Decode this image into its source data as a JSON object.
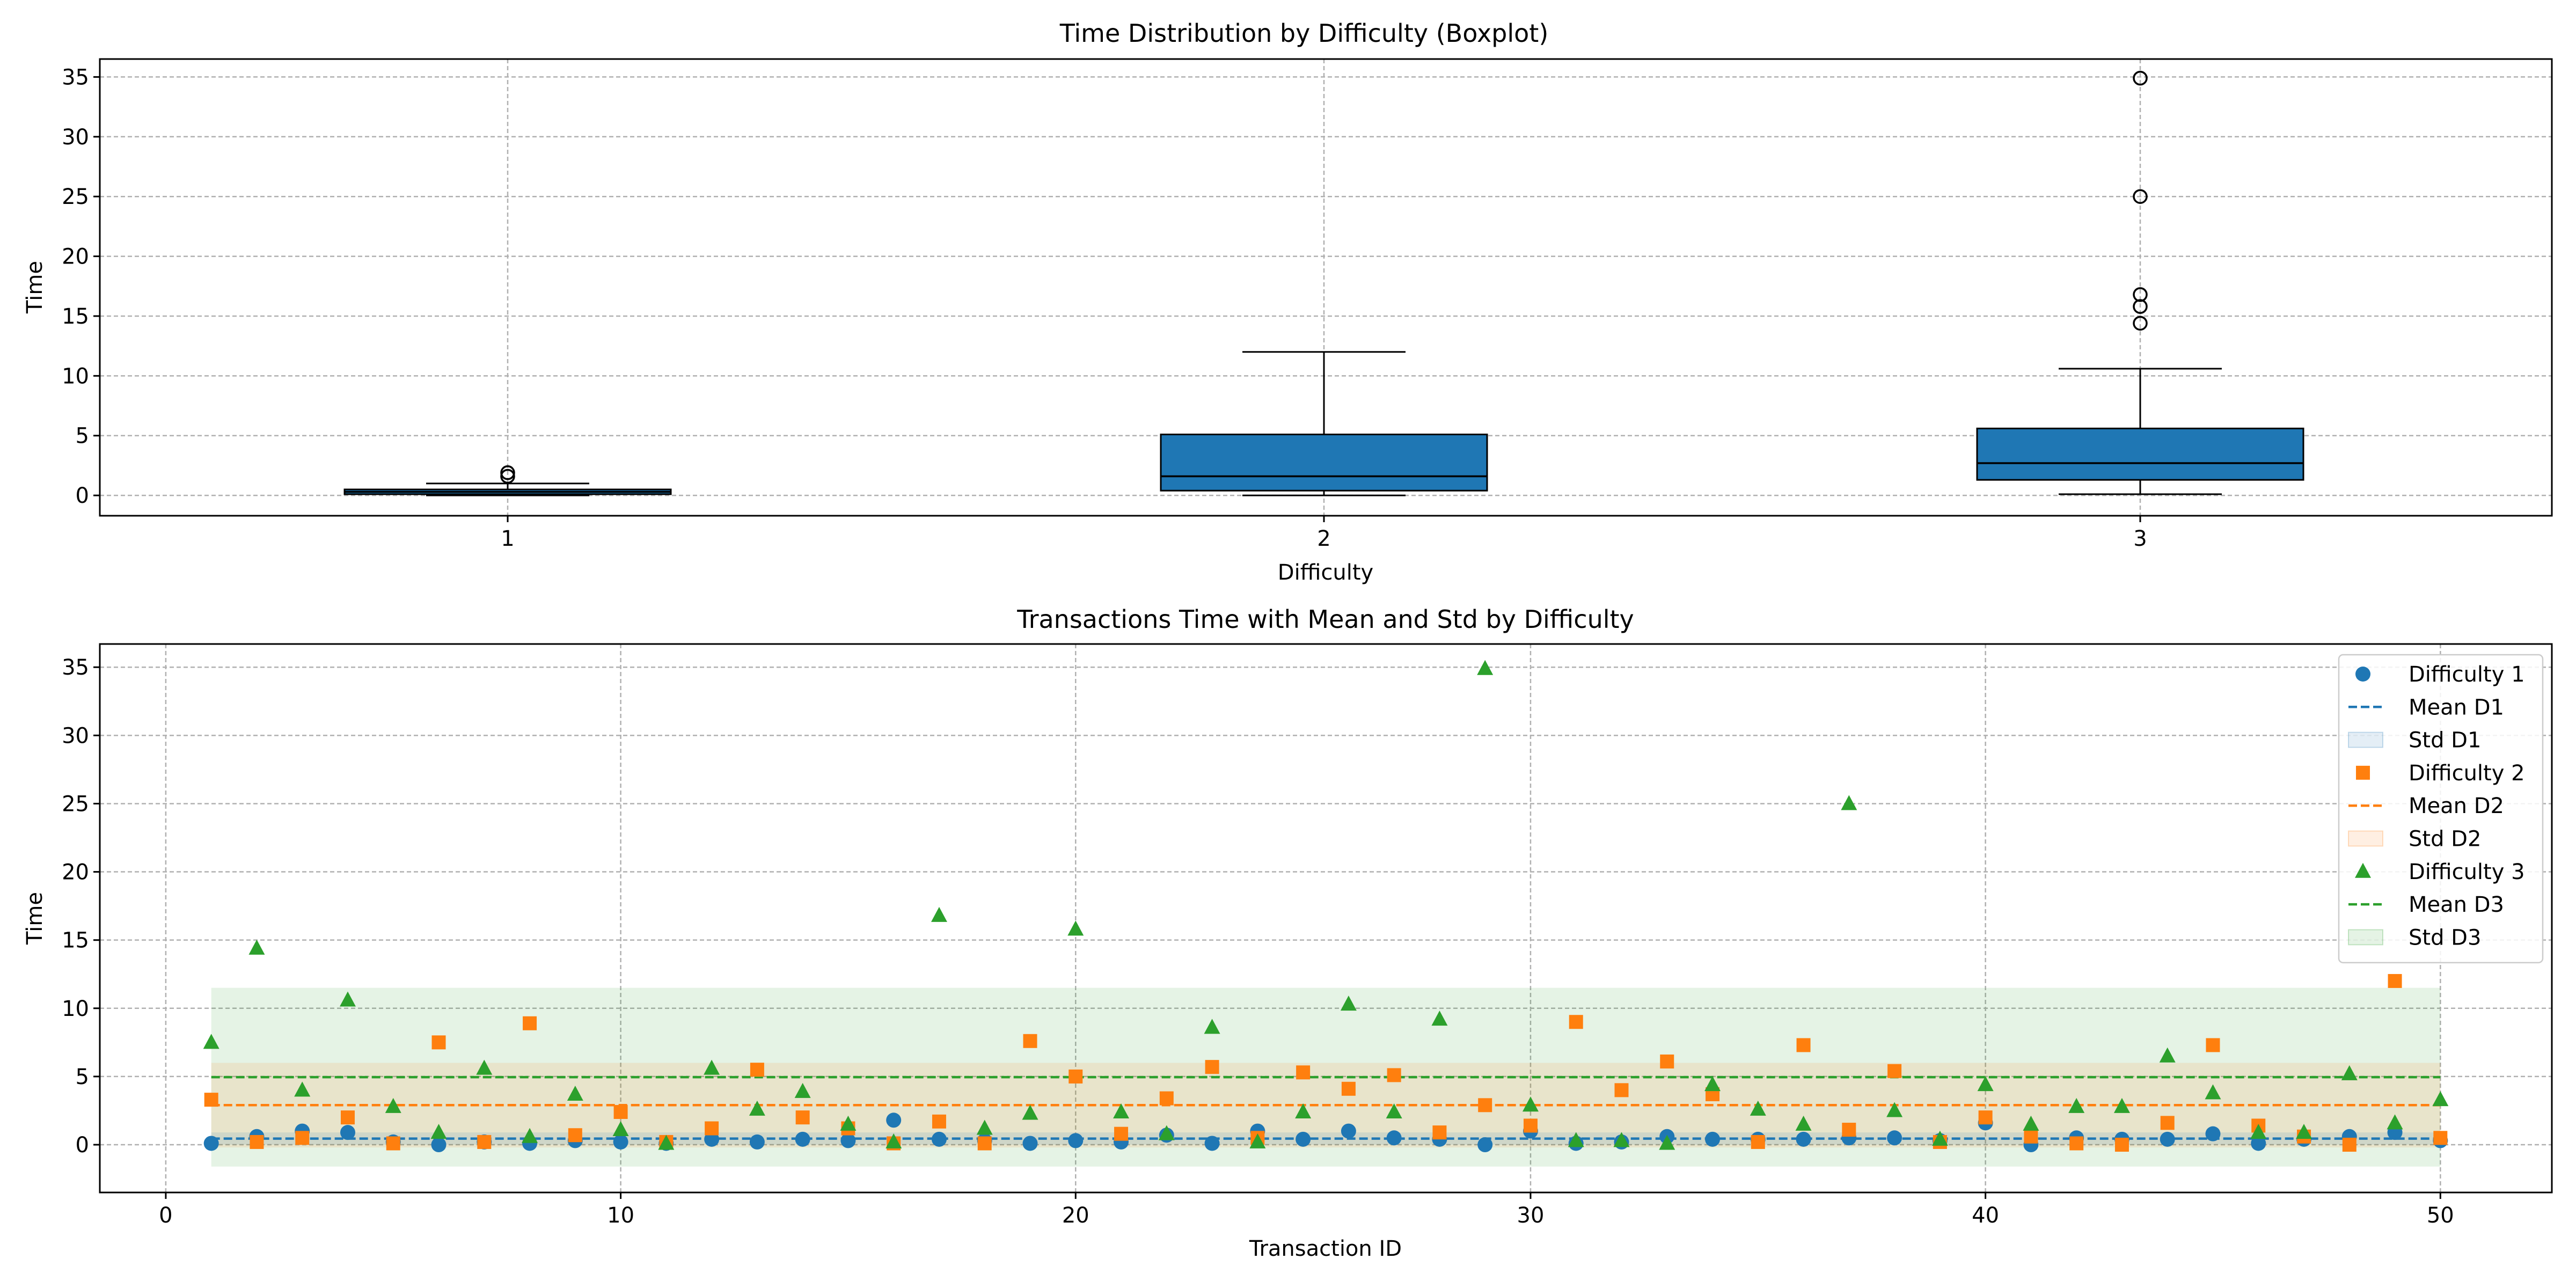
{
  "chart_data": [
    {
      "type": "boxplot",
      "title": "Time Distribution by Difficulty (Boxplot)",
      "xlabel": "Difficulty",
      "ylabel": "Time",
      "categories": [
        "1",
        "2",
        "3"
      ],
      "ylim": [
        -1.7,
        36.5
      ],
      "yticks": [
        0,
        5,
        10,
        15,
        20,
        25,
        30,
        35
      ],
      "grid": true,
      "box_color": "#1f77b4",
      "boxes": [
        {
          "category": "1",
          "whisker_low": 0.0,
          "q1": 0.1,
          "median": 0.3,
          "q3": 0.5,
          "whisker_high": 1.0,
          "outliers": [
            1.6,
            1.9
          ]
        },
        {
          "category": "2",
          "whisker_low": 0.0,
          "q1": 0.4,
          "median": 1.6,
          "q3": 5.1,
          "whisker_high": 12.0,
          "outliers": []
        },
        {
          "category": "3",
          "whisker_low": 0.1,
          "q1": 1.3,
          "median": 2.7,
          "q3": 5.6,
          "whisker_high": 10.6,
          "outliers": [
            14.4,
            15.8,
            16.8,
            25.0,
            34.9
          ]
        }
      ]
    },
    {
      "type": "scatter",
      "title": "Transactions Time with Mean and Std by Difficulty",
      "xlabel": "Transaction ID",
      "ylabel": "Time",
      "xlim": [
        -1.45,
        52.45
      ],
      "ylim": [
        -3.5,
        36.7
      ],
      "xticks": [
        0,
        10,
        20,
        30,
        40,
        50
      ],
      "yticks": [
        0,
        5,
        10,
        15,
        20,
        25,
        30,
        35
      ],
      "grid": true,
      "legend_position": "top-right",
      "x": [
        1,
        2,
        3,
        4,
        5,
        6,
        7,
        8,
        9,
        10,
        11,
        12,
        13,
        14,
        15,
        16,
        17,
        18,
        19,
        20,
        21,
        22,
        23,
        24,
        25,
        26,
        27,
        28,
        29,
        30,
        31,
        32,
        33,
        34,
        35,
        36,
        37,
        38,
        39,
        40,
        41,
        42,
        43,
        44,
        45,
        46,
        47,
        48,
        49,
        50
      ],
      "series": [
        {
          "name": "Difficulty 1",
          "marker": "circle",
          "color": "#1f77b4",
          "values": [
            0.1,
            0.6,
            1.0,
            0.9,
            0.2,
            0.0,
            0.2,
            0.1,
            0.3,
            0.2,
            0.1,
            0.4,
            0.2,
            0.4,
            0.3,
            1.8,
            0.4,
            0.3,
            0.1,
            0.3,
            0.2,
            0.7,
            0.1,
            1.0,
            0.4,
            1.0,
            0.5,
            0.4,
            0.0,
            1.0,
            0.1,
            0.2,
            0.6,
            0.4,
            0.4,
            0.4,
            0.5,
            0.5,
            0.3,
            1.6,
            0.0,
            0.5,
            0.4,
            0.4,
            0.8,
            0.1,
            0.4,
            0.6,
            0.9,
            0.3
          ]
        },
        {
          "name": "Difficulty 2",
          "marker": "square",
          "color": "#ff7f0e",
          "values": [
            3.3,
            0.2,
            0.5,
            2.0,
            0.1,
            7.5,
            0.2,
            8.9,
            0.7,
            2.4,
            0.2,
            1.2,
            5.5,
            2.0,
            1.2,
            0.1,
            1.7,
            0.1,
            7.6,
            5.0,
            0.8,
            3.4,
            5.7,
            0.5,
            5.3,
            4.1,
            5.1,
            0.9,
            2.9,
            1.4,
            9.0,
            4.0,
            6.1,
            3.7,
            0.2,
            7.3,
            1.1,
            5.4,
            0.2,
            2.0,
            0.6,
            0.1,
            0.0,
            1.6,
            7.3,
            1.4,
            0.6,
            0.0,
            12.0,
            0.5
          ]
        },
        {
          "name": "Difficulty 3",
          "marker": "triangle",
          "color": "#2ca02c",
          "values": [
            7.5,
            14.4,
            4.0,
            10.6,
            2.8,
            0.9,
            5.6,
            0.6,
            3.7,
            1.1,
            0.1,
            5.6,
            2.6,
            3.9,
            1.5,
            0.2,
            16.8,
            1.2,
            2.3,
            15.8,
            2.4,
            0.8,
            8.6,
            0.2,
            2.4,
            10.3,
            2.4,
            9.2,
            34.9,
            2.9,
            0.3,
            0.3,
            0.1,
            4.4,
            2.6,
            1.5,
            25.0,
            2.5,
            0.4,
            4.4,
            1.5,
            2.8,
            2.8,
            6.5,
            3.8,
            0.9,
            0.9,
            5.2,
            1.6,
            3.3
          ]
        }
      ],
      "mean_lines": [
        {
          "name": "Mean D1",
          "value": 0.45,
          "color": "#1f77b4"
        },
        {
          "name": "Mean D2",
          "value": 2.9,
          "color": "#ff7f0e"
        },
        {
          "name": "Mean D3",
          "value": 4.95,
          "color": "#2ca02c"
        }
      ],
      "std_bands": [
        {
          "name": "Std D1",
          "low": 0.0,
          "high": 0.9,
          "color": "#1f77b4"
        },
        {
          "name": "Std D2",
          "low": -0.2,
          "high": 6.0,
          "color": "#ff7f0e"
        },
        {
          "name": "Std D3",
          "low": -1.6,
          "high": 11.5,
          "color": "#2ca02c"
        }
      ],
      "legend": [
        "Difficulty 1",
        "Mean D1",
        "Std D1",
        "Difficulty 2",
        "Mean D2",
        "Std D2",
        "Difficulty 3",
        "Mean D3",
        "Std D3"
      ]
    }
  ]
}
